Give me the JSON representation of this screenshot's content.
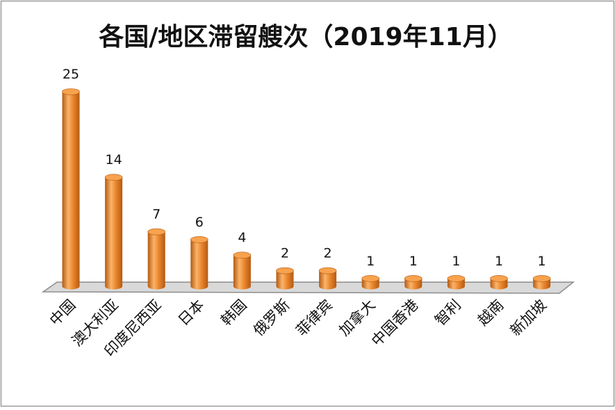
{
  "chart_data": {
    "type": "bar",
    "title": "各国/地区滞留艘次（2019年11月）",
    "categories": [
      "中国",
      "澳大利亚",
      "印度尼西亚",
      "日本",
      "韩国",
      "俄罗斯",
      "菲律宾",
      "加拿大",
      "中国香港",
      "智利",
      "越南",
      "新加坡"
    ],
    "values": [
      25,
      14,
      7,
      6,
      4,
      2,
      2,
      1,
      1,
      1,
      1,
      1
    ],
    "xlabel": "",
    "ylabel": "",
    "ylim": [
      0,
      25
    ],
    "grid": false,
    "legend": "none",
    "style": "3d-cylinder",
    "colors": {
      "bar_body": "#E8832A",
      "bar_light": "#FBB469",
      "bar_dark": "#B45A12",
      "bar_top": "#F7A24E",
      "floor_fill": "#D9D9D9",
      "floor_stroke": "#8C8C8C",
      "frame": "#999999",
      "text": "#111111"
    }
  }
}
